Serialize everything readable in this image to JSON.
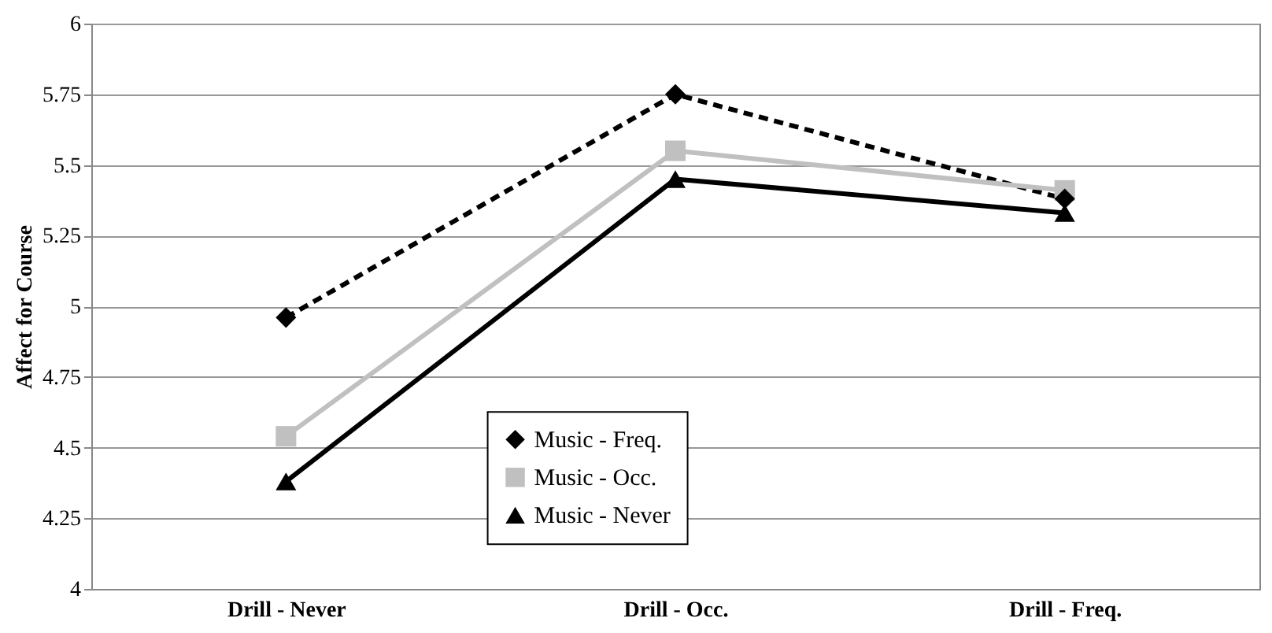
{
  "chart_data": {
    "type": "line",
    "ylabel": "Affect for Course",
    "categories": [
      "Drill - Never",
      "Drill - Occ.",
      "Drill - Freq."
    ],
    "series": [
      {
        "name": "Music - Freq.",
        "color": "#000000",
        "values": [
          4.96,
          5.75,
          5.38
        ],
        "marker": "diamond",
        "line_style": "dashed"
      },
      {
        "name": "Music - Occ.",
        "color": "#c0c0c0",
        "values": [
          4.54,
          5.55,
          5.41
        ],
        "marker": "square",
        "line_style": "solid"
      },
      {
        "name": "Music - Never",
        "color": "#000000",
        "values": [
          4.38,
          5.45,
          5.33
        ],
        "marker": "triangle",
        "line_style": "solid"
      }
    ],
    "ylim": [
      4,
      6
    ],
    "yticks": [
      4,
      4.25,
      4.5,
      4.75,
      5,
      5.25,
      5.5,
      5.75,
      6
    ],
    "grid": "y",
    "legend": "bottom"
  }
}
